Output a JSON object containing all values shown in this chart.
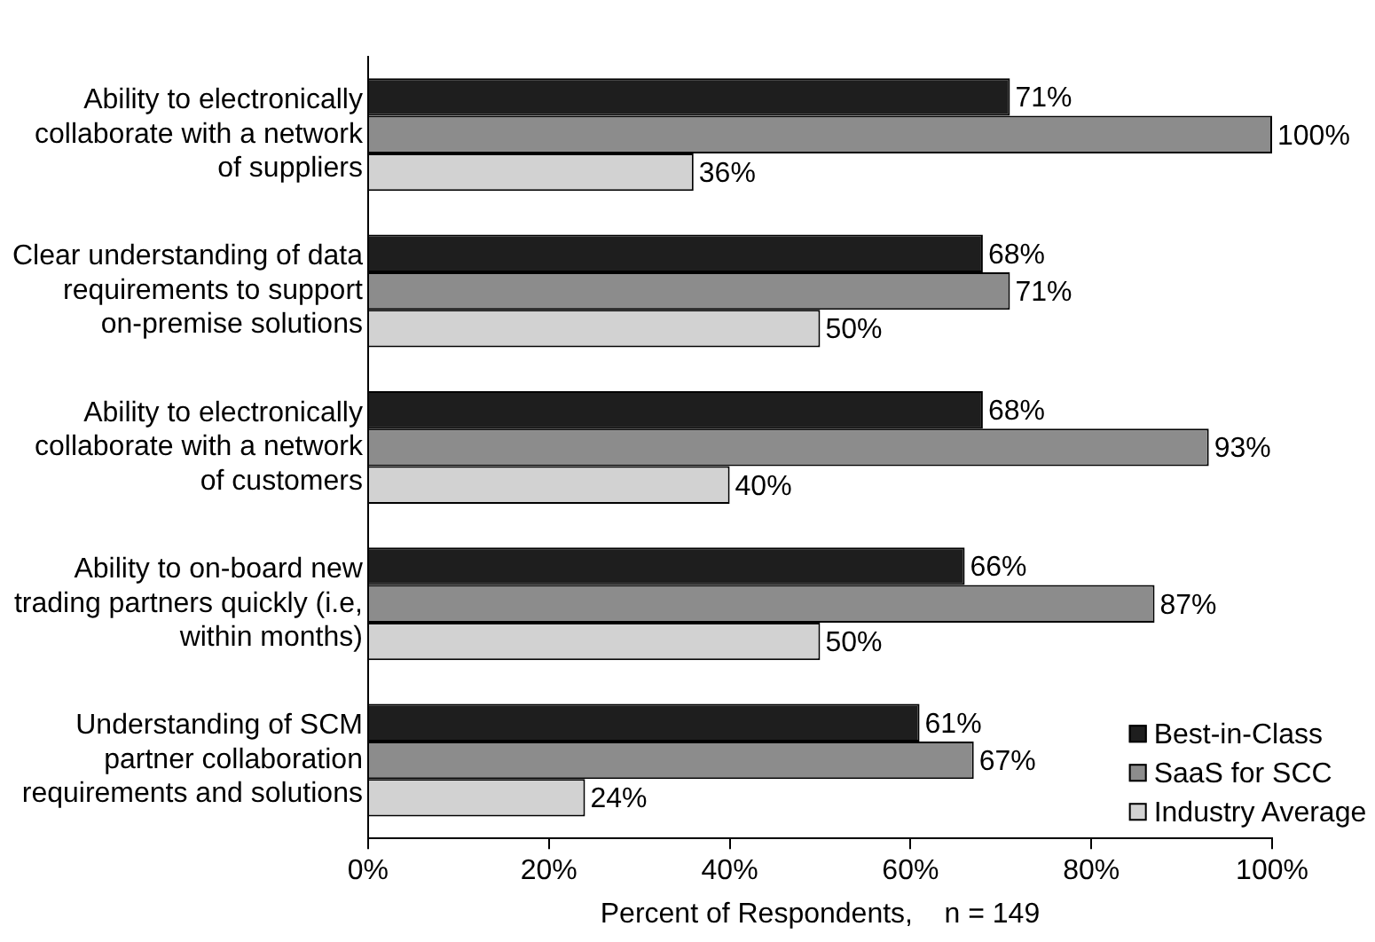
{
  "chart_data": {
    "type": "bar",
    "orientation": "horizontal",
    "xlabel": "Percent of Respondents,    n = 149",
    "categories": [
      "Ability to electronically collaborate with a network of suppliers",
      "Clear understanding of data requirements to support on-premise solutions",
      "Ability to electronically collaborate with a network of customers",
      "Ability to on-board new trading partners quickly (i.e, within months)",
      "Understanding of SCM partner collaboration requirements and solutions"
    ],
    "series": [
      {
        "name": "Best-in-Class",
        "color": "#1e1e1e",
        "values": [
          71,
          68,
          68,
          66,
          61
        ],
        "value_labels": [
          "71%",
          "68%",
          "68%",
          "66%",
          "61%"
        ]
      },
      {
        "name": "SaaS for SCC",
        "color": "#8c8c8c",
        "values": [
          100,
          71,
          93,
          87,
          67
        ],
        "value_labels": [
          "100%",
          "71%",
          "93%",
          "87%",
          "67%"
        ]
      },
      {
        "name": "Industry Average",
        "color": "#d2d2d2",
        "values": [
          36,
          50,
          40,
          50,
          24
        ],
        "value_labels": [
          "36%",
          "50%",
          "40%",
          "50%",
          "24%"
        ]
      }
    ],
    "xlim": [
      0,
      100
    ],
    "xticks": [
      {
        "value": 0,
        "label": "0%"
      },
      {
        "value": 20,
        "label": "20%"
      },
      {
        "value": 40,
        "label": "40%"
      },
      {
        "value": 60,
        "label": "60%"
      },
      {
        "value": 80,
        "label": "80%"
      },
      {
        "value": 100,
        "label": "100%"
      }
    ],
    "grid": false,
    "legend": "bottom right"
  }
}
